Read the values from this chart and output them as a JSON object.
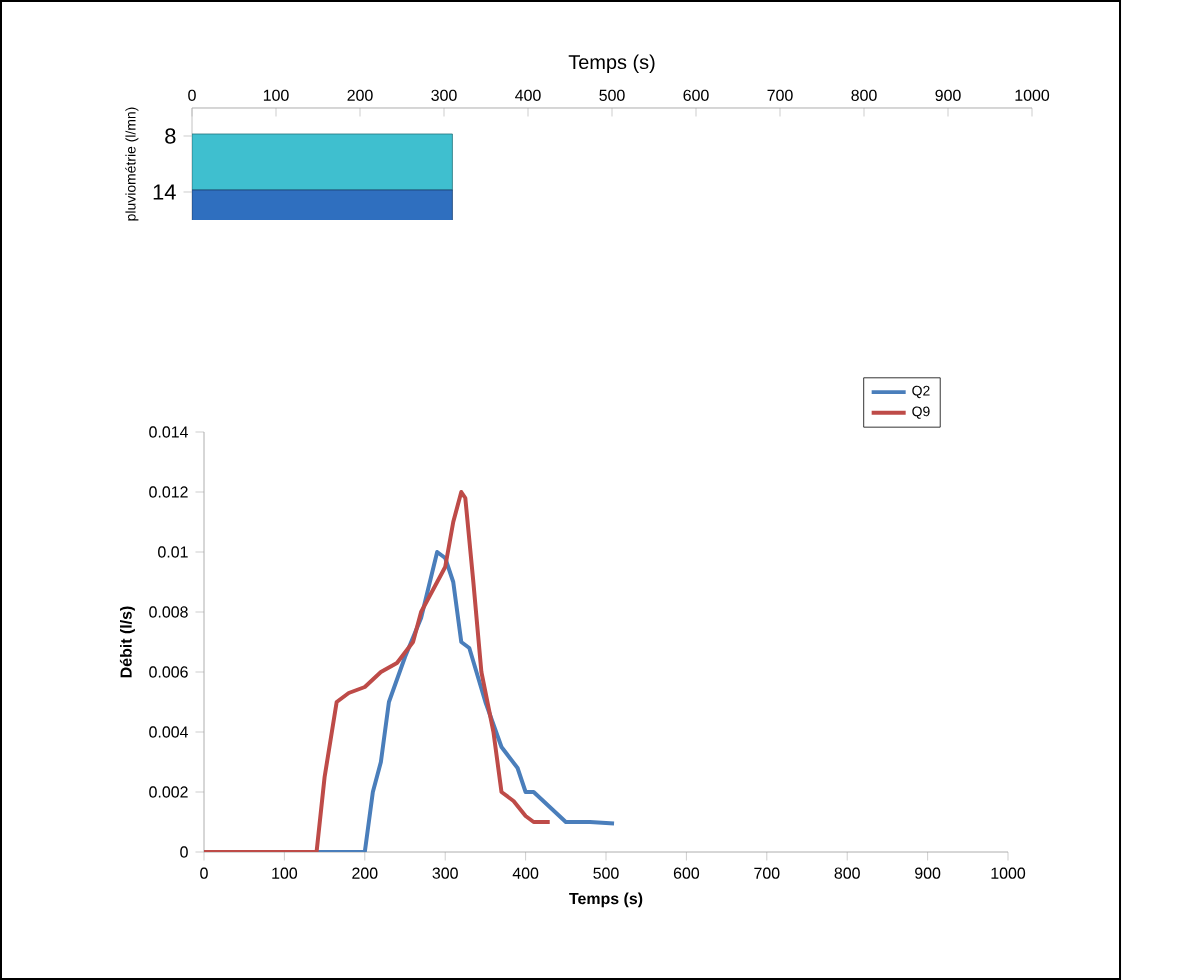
{
  "chart_data": [
    {
      "type": "bar",
      "orientation": "horizontal",
      "xlabel": "Temps (s)",
      "ylabel": "pluviométrie (l/mn)",
      "categories": [
        "8",
        "14"
      ],
      "values": [
        310,
        310
      ],
      "colors": [
        "#3fbfcf",
        "#2f6fbf"
      ],
      "xlim": [
        0,
        1000
      ],
      "xticks": [
        0,
        100,
        200,
        300,
        400,
        500,
        600,
        700,
        800,
        900,
        1000
      ]
    },
    {
      "type": "line",
      "xlabel": "Temps (s)",
      "ylabel": "Débit (l/s)",
      "legend": "top right",
      "xlim": [
        0,
        1000
      ],
      "xticks": [
        0,
        100,
        200,
        300,
        400,
        500,
        600,
        700,
        800,
        900,
        1000
      ],
      "ylim": [
        0,
        0.014
      ],
      "yticks": [
        0,
        0.002,
        0.004,
        0.006,
        0.008,
        0.01,
        0.012,
        0.014
      ],
      "series": [
        {
          "name": "Q2",
          "color": "#4a7ebb",
          "x": [
            0,
            200,
            210,
            220,
            230,
            250,
            270,
            290,
            300,
            310,
            320,
            330,
            350,
            370,
            390,
            400,
            410,
            430,
            450,
            480,
            510
          ],
          "values": [
            0,
            0,
            0.002,
            0.003,
            0.005,
            0.0065,
            0.0078,
            0.01,
            0.0098,
            0.009,
            0.007,
            0.0068,
            0.005,
            0.0035,
            0.0028,
            0.002,
            0.002,
            0.0015,
            0.001,
            0.001,
            0.00095
          ]
        },
        {
          "name": "Q9",
          "color": "#be4b48",
          "x": [
            0,
            140,
            150,
            165,
            180,
            200,
            220,
            240,
            260,
            270,
            300,
            310,
            320,
            325,
            335,
            345,
            360,
            370,
            385,
            400,
            410,
            430
          ],
          "values": [
            0,
            0,
            0.0025,
            0.005,
            0.0053,
            0.0055,
            0.006,
            0.0063,
            0.007,
            0.008,
            0.0095,
            0.011,
            0.012,
            0.0118,
            0.009,
            0.006,
            0.004,
            0.002,
            0.0017,
            0.0012,
            0.001,
            0.001
          ]
        }
      ]
    }
  ]
}
